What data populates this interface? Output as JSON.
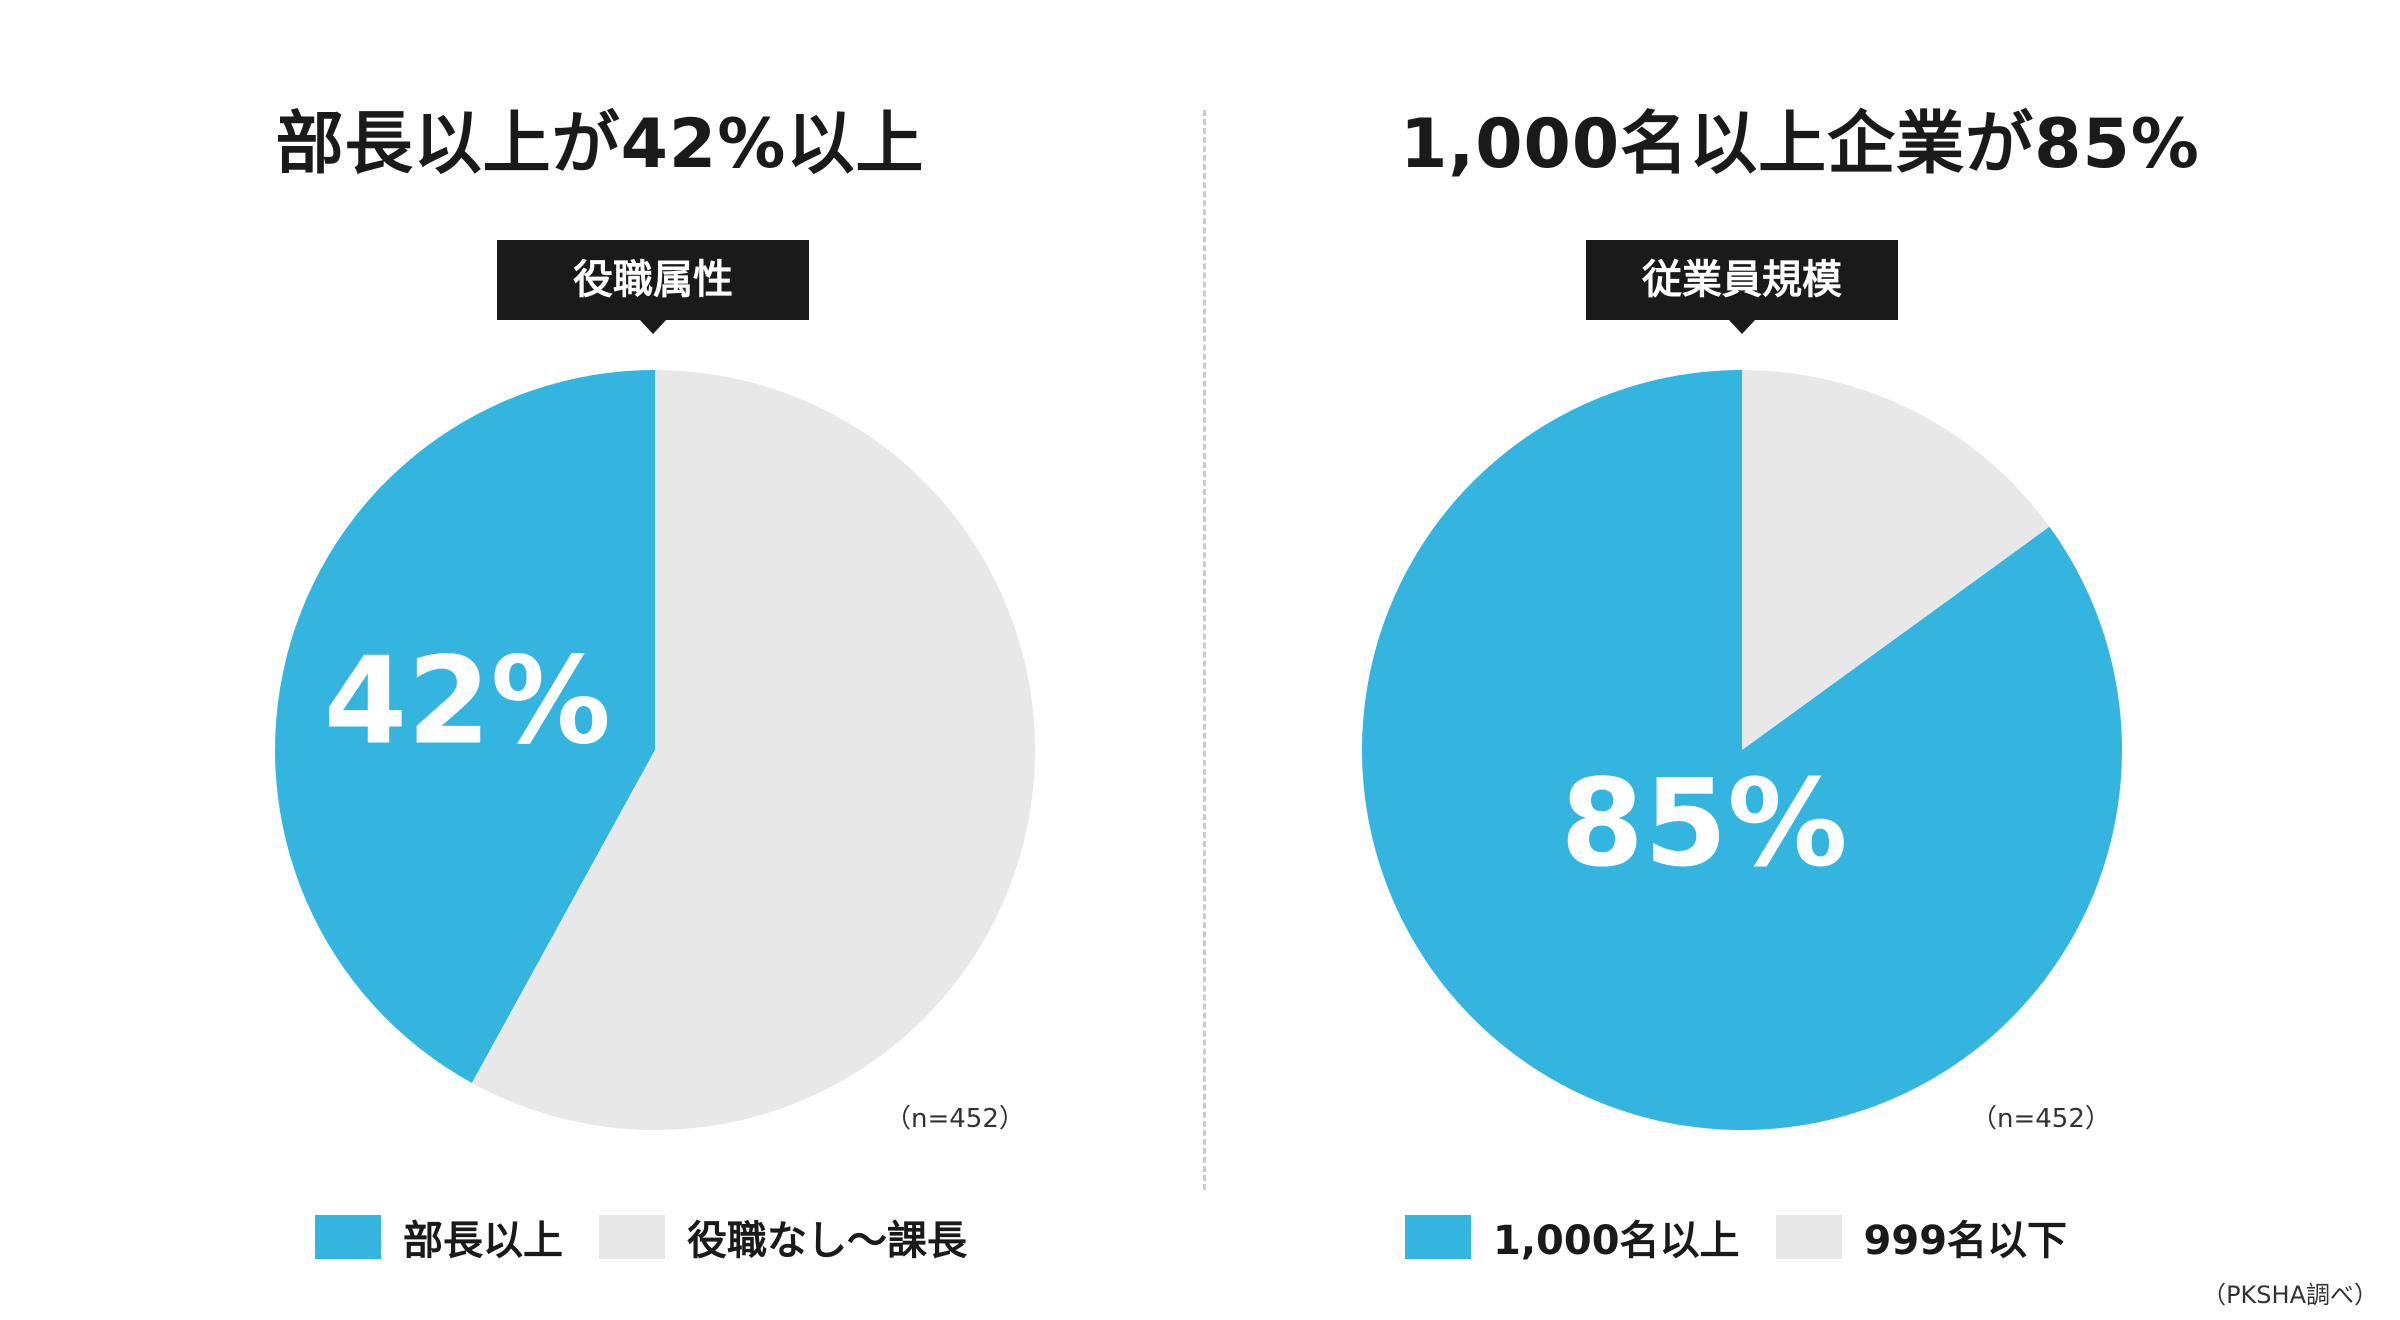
{
  "colors": {
    "primary": "#33b5df",
    "secondary": "#e8e8e8"
  },
  "source": "（PKSHA調べ）",
  "chart_data": [
    {
      "type": "pie",
      "title": "部長以上が42%以上",
      "category_label": "役職属性",
      "sample_note": "（n=452）",
      "slices": [
        {
          "label": "部長以上",
          "value": 42,
          "display": "42%"
        },
        {
          "label": "役職なし〜課長",
          "value": 58,
          "display": ""
        }
      ]
    },
    {
      "type": "pie",
      "title": "1,000名以上企業が85%",
      "category_label": "従業員規模",
      "sample_note": "（n=452）",
      "slices": [
        {
          "label": "1,000名以上",
          "value": 85,
          "display": "85%"
        },
        {
          "label": "999名以下",
          "value": 15,
          "display": ""
        }
      ]
    }
  ]
}
